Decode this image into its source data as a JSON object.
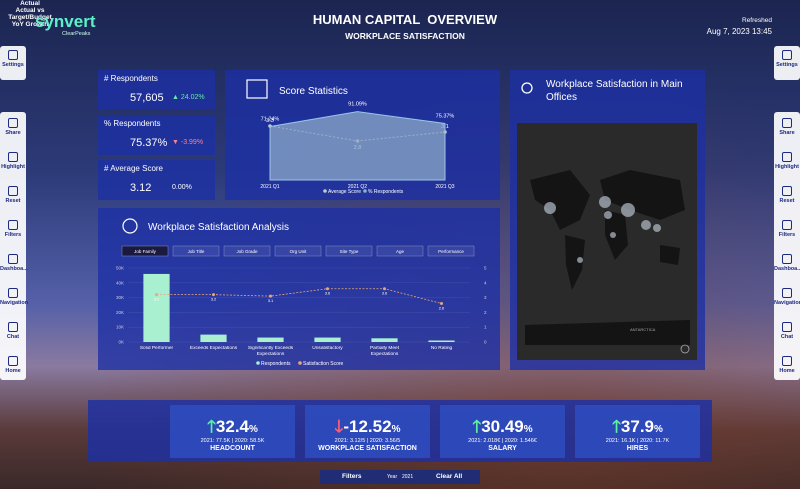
{
  "header": {
    "logo": "synvert",
    "logo_sub": "ClearPeaks",
    "title": "HUMAN CAPITAL  OVERVIEW",
    "subtitle": "WORKPLACE SATISFACTION",
    "refreshed_label": "Refreshed",
    "refreshed_value": "Aug 7, 2023 13:45"
  },
  "sidebar": {
    "items": [
      "Settings",
      "Share",
      "Highlight",
      "Reset",
      "Filters",
      "Dashboa...",
      "Navigation",
      "Chat",
      "Home"
    ]
  },
  "kpis": [
    {
      "label": "# Respondents",
      "value": "57,605",
      "change": "24.02%",
      "trend": "up"
    },
    {
      "label": "% Respondents",
      "value": "75.37%",
      "change": "-3.99%",
      "trend": "down"
    },
    {
      "label": "# Average Score",
      "value": "3.12",
      "change": "0.00%",
      "trend": "flat"
    }
  ],
  "score_statistics": {
    "type": "area-line",
    "title": "Score Statistics",
    "categories": [
      "2021 Q1",
      "2021 Q2",
      "2021 Q3"
    ],
    "series": [
      {
        "name": "Average Score",
        "color": "#c8c8c8",
        "values": [
          3.3,
          2.8,
          3.1
        ],
        "axis": "y2"
      },
      {
        "name": "% Respondents",
        "color": "#8ab0d0",
        "values": [
          71.24,
          91.09,
          75.37
        ],
        "value_labels": [
          "71.24%",
          "91.09%",
          "75.37%"
        ]
      }
    ],
    "ylim": [
      0,
      100
    ],
    "y2lim": [
      1.5,
      4
    ]
  },
  "satisfaction_analysis": {
    "type": "bar-line",
    "title": "Workplace Satisfaction Analysis",
    "tabs": [
      "Job Family",
      "Job Title",
      "Job Grade",
      "Org Unit",
      "Site Type",
      "Age",
      "Performance"
    ],
    "categories": [
      "Solid Performer",
      "Exceeds Expectations",
      "Significantly Exceeds Expectations",
      "Unsatisfactory",
      "Partially Meet Expectations",
      "No Rating"
    ],
    "series": [
      {
        "name": "Respondents",
        "color": "#a8f0d0",
        "values": [
          46000,
          5000,
          3000,
          3000,
          2500,
          1000
        ]
      },
      {
        "name": "Satisfaction Score",
        "color": "#e8a878",
        "values": [
          3.2,
          3.2,
          3.1,
          3.6,
          3.6,
          2.6
        ],
        "axis": "y2"
      }
    ],
    "ylim": [
      0,
      50000
    ],
    "yticks": [
      {
        "value": 0,
        "label": "0K"
      },
      {
        "value": 10000,
        "label": "10K"
      },
      {
        "value": 20000,
        "label": "20K"
      },
      {
        "value": 30000,
        "label": "30K"
      },
      {
        "value": 40000,
        "label": "40K"
      },
      {
        "value": 50000,
        "label": "50K"
      }
    ],
    "y2lim": [
      0,
      5
    ],
    "y2ticks": [
      0,
      1,
      2,
      3,
      4,
      5
    ]
  },
  "map_panel": {
    "title": "Workplace Satisfaction in Main Offices",
    "label": "ANTARCTICA"
  },
  "bottom": {
    "row_labels": [
      "Actual",
      "Actual vs Target/Budget",
      "YoY Growth"
    ],
    "cards": [
      {
        "value": "32.4",
        "unit": "%",
        "detail": "2021: 77.5K | 2020: 58.5K",
        "label": "HEADCOUNT",
        "trend": "up"
      },
      {
        "value": "-12.52",
        "unit": "%",
        "detail": "2021: 3.12/5 | 2020: 3.56/5",
        "label": "WORKPLACE SATISFACTION",
        "trend": "down"
      },
      {
        "value": "30.49",
        "unit": "%",
        "detail": "2021: 2.018€ | 2020: 1.546€",
        "label": "SALARY",
        "trend": "up"
      },
      {
        "value": "37.9",
        "unit": "%",
        "detail": "2021: 16.1K | 2020: 11.7K",
        "label": "HIRES",
        "trend": "up"
      }
    ]
  },
  "footer": {
    "filters": "Filters",
    "year_label": "Year",
    "year_value": "2021",
    "clear": "Clear All"
  }
}
